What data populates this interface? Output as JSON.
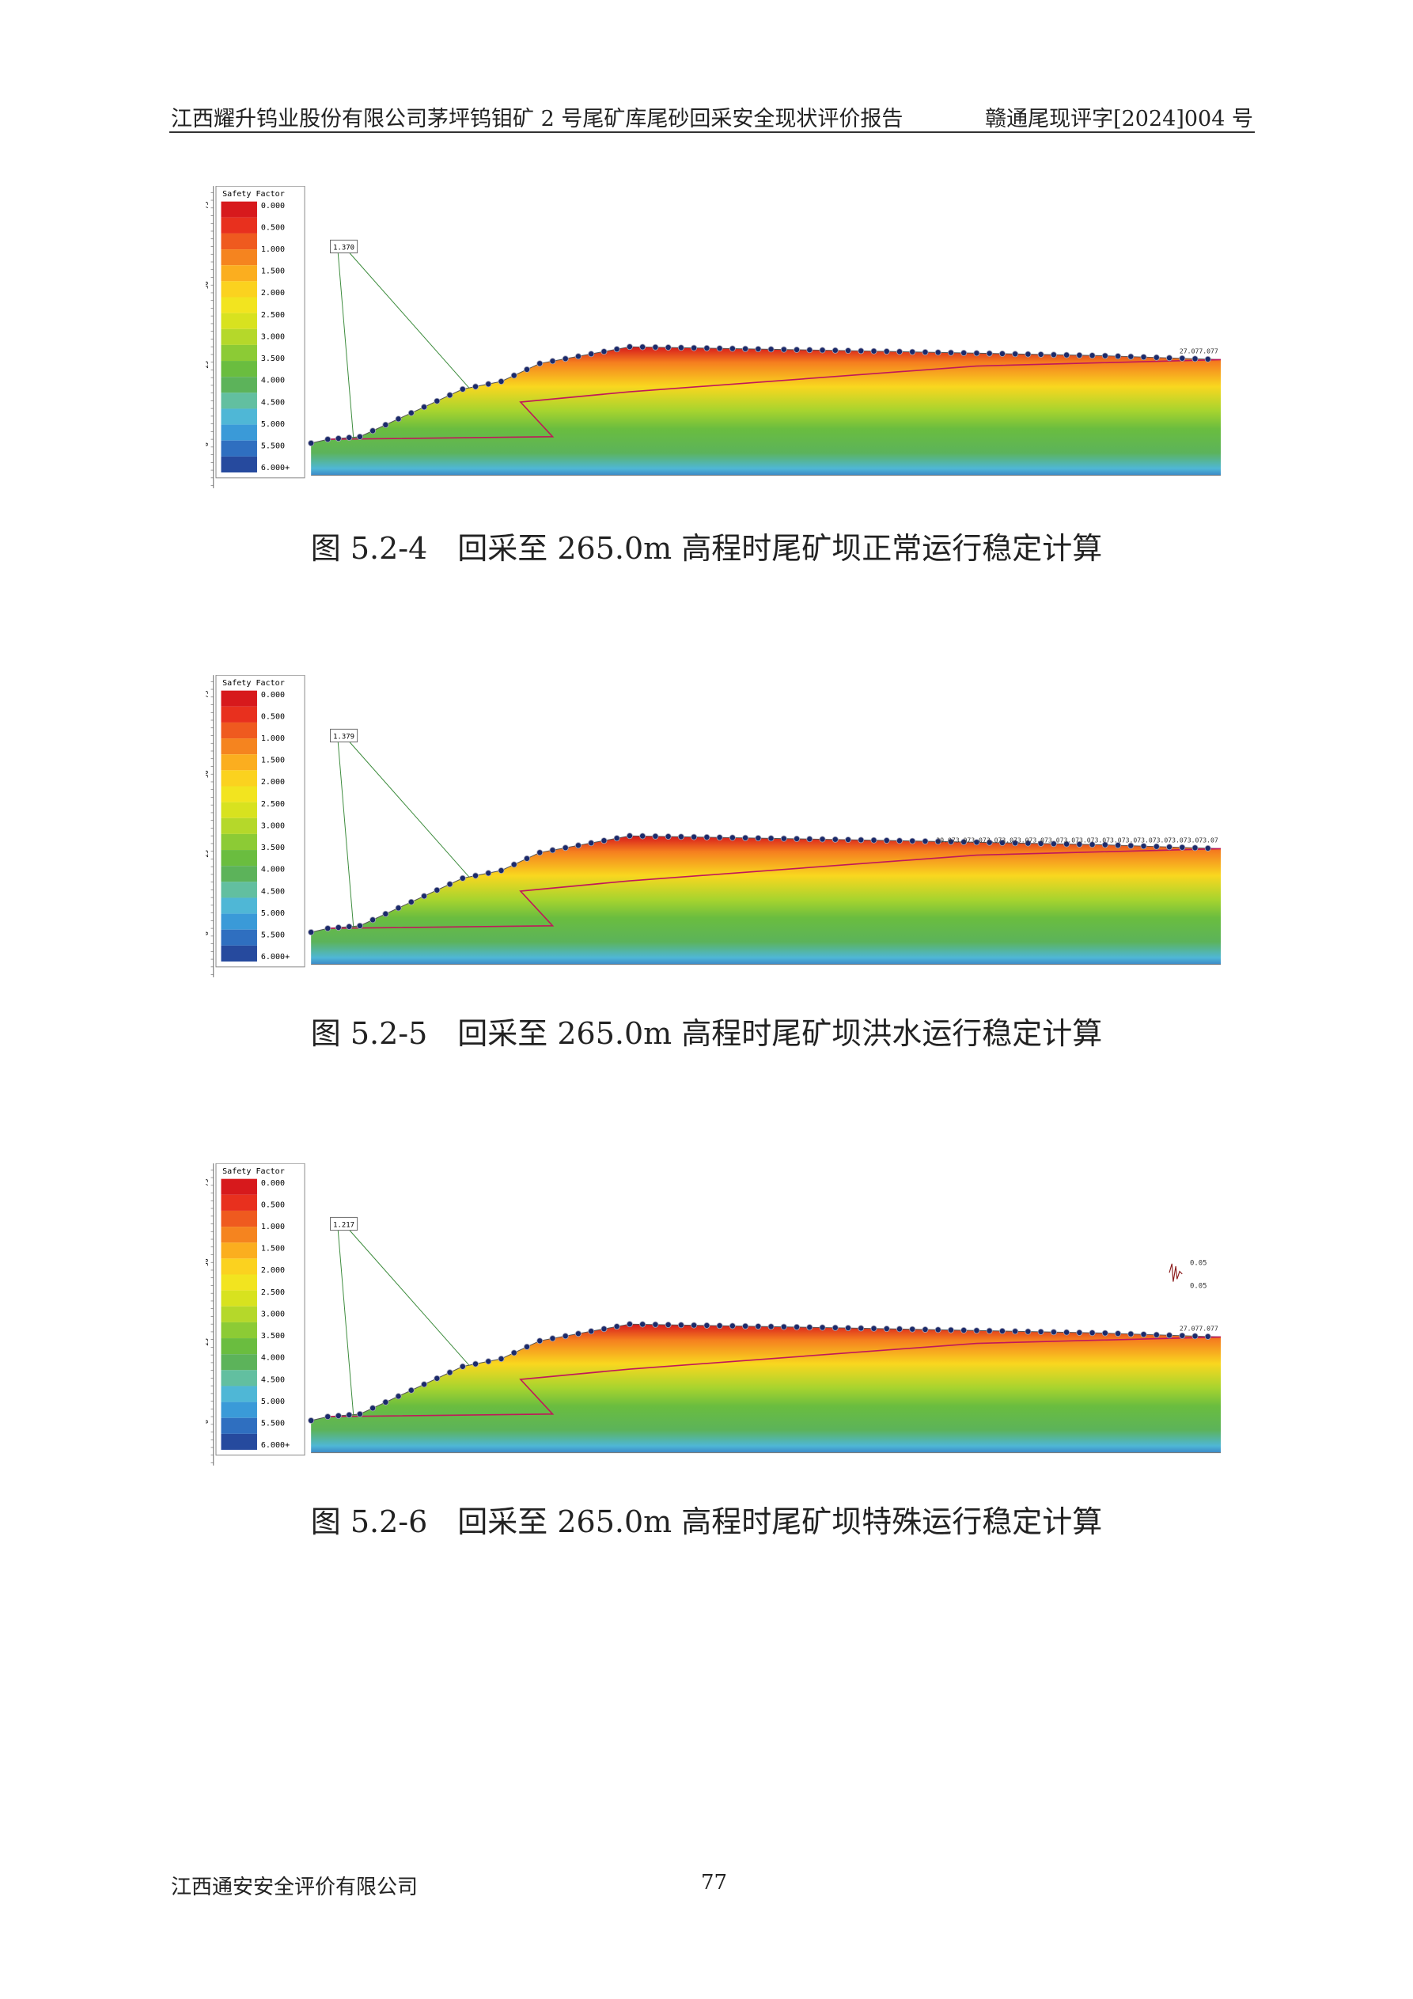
{
  "header": {
    "left": "江西耀升钨业股份有限公司茅坪钨钼矿 2 号尾矿库尾砂回采安全现状评价报告",
    "right": "赣通尾现评字[2024]004 号"
  },
  "legend": {
    "title": "Safety Factor",
    "labels": [
      "0.000",
      "0.500",
      "1.000",
      "1.500",
      "2.000",
      "2.500",
      "3.000",
      "3.500",
      "4.000",
      "4.500",
      "5.000",
      "5.500",
      "6.000+"
    ],
    "colors": [
      "#d7191c",
      "#e8301e",
      "#ef5a1f",
      "#f5841f",
      "#fbae1f",
      "#fbd21f",
      "#f2e41f",
      "#d8e21f",
      "#b5d82a",
      "#8ccb35",
      "#6abd3f",
      "#5cb35a",
      "#62bfa0",
      "#4fb7d6",
      "#3a9ad8",
      "#2f6fc0",
      "#264a9e"
    ]
  },
  "axis_ticks": [
    "75",
    "50",
    "25",
    "0"
  ],
  "figures": [
    {
      "factor": "1.370",
      "edge_label": "27.077.077",
      "caption": "图 5.2-4　回采至 265.0m 高程时尾矿坝正常运行稳定计算"
    },
    {
      "factor": "1.379",
      "edge_label": "29.073.073.073.073.073.073.073.073.073.073.073.073.073.073.073.073.073.07",
      "caption": "图 5.2-5　回采至 265.0m 高程时尾矿坝洪水运行稳定计算"
    },
    {
      "factor": "1.217",
      "edge_label": "27.077.077",
      "seismic": [
        "0.05",
        "0.05"
      ],
      "caption": "图 5.2-6　回采至 265.0m 高程时尾矿坝特殊运行稳定计算"
    }
  ],
  "footer": {
    "left": "江西通安安全评价有限公司",
    "page": "77"
  }
}
